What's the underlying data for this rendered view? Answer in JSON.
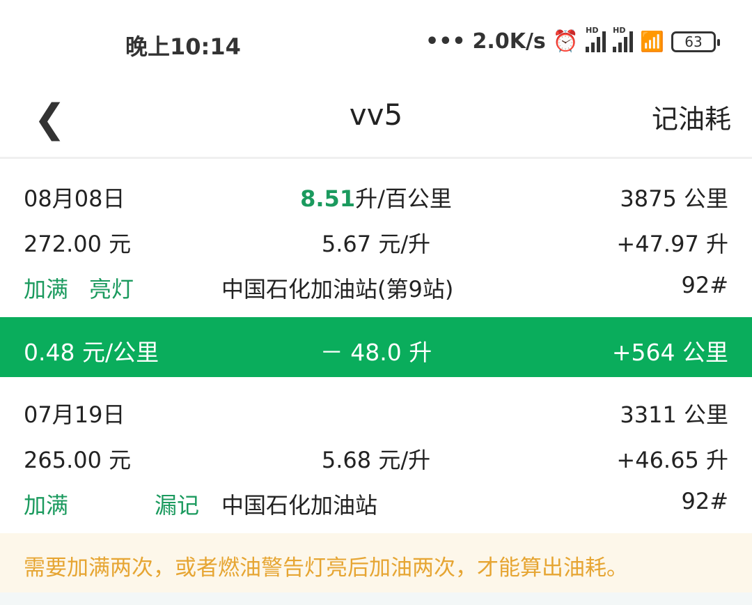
{
  "status_bar": {
    "time": "晚上10:14",
    "dots": "•••",
    "speed": "2.0K/s",
    "signal_label": "HD",
    "battery": "63",
    "icons": [
      "alarm-icon",
      "signal-icon",
      "signal-icon",
      "wifi-icon",
      "battery-icon"
    ]
  },
  "header": {
    "title": "vv5",
    "action": "记油耗"
  },
  "records": [
    {
      "date": "08月08日",
      "consumption_value": "8.51",
      "consumption_unit": "升/百公里",
      "odometer": "3875 公里",
      "amount": "272.00 元",
      "price": "5.67 元/升",
      "volume": "+47.97 升",
      "tag1": "加满",
      "tag2": "亮灯",
      "station": "中国石化加油站(第9站)",
      "fuel": "92#"
    },
    {
      "date": "07月19日",
      "odometer": "3311 公里",
      "amount": "265.00 元",
      "price": "5.68 元/升",
      "volume": "+46.65 升",
      "tag1": "加满",
      "tag2": "漏记",
      "station": "中国石化加油站",
      "fuel": "92#"
    }
  ],
  "summary": {
    "cost_per_km": "0.48 元/公里",
    "fuel_used": "－ 48.0 升",
    "distance": "+564 公里"
  },
  "notice": "需要加满两次，或者燃油警告灯亮后加油两次，才能算出油耗。",
  "colors": {
    "accent": "#0aad5c",
    "tag_green": "#1b9a5e",
    "notice": "#e6a532",
    "notice_bg": "#fdf7ea"
  }
}
